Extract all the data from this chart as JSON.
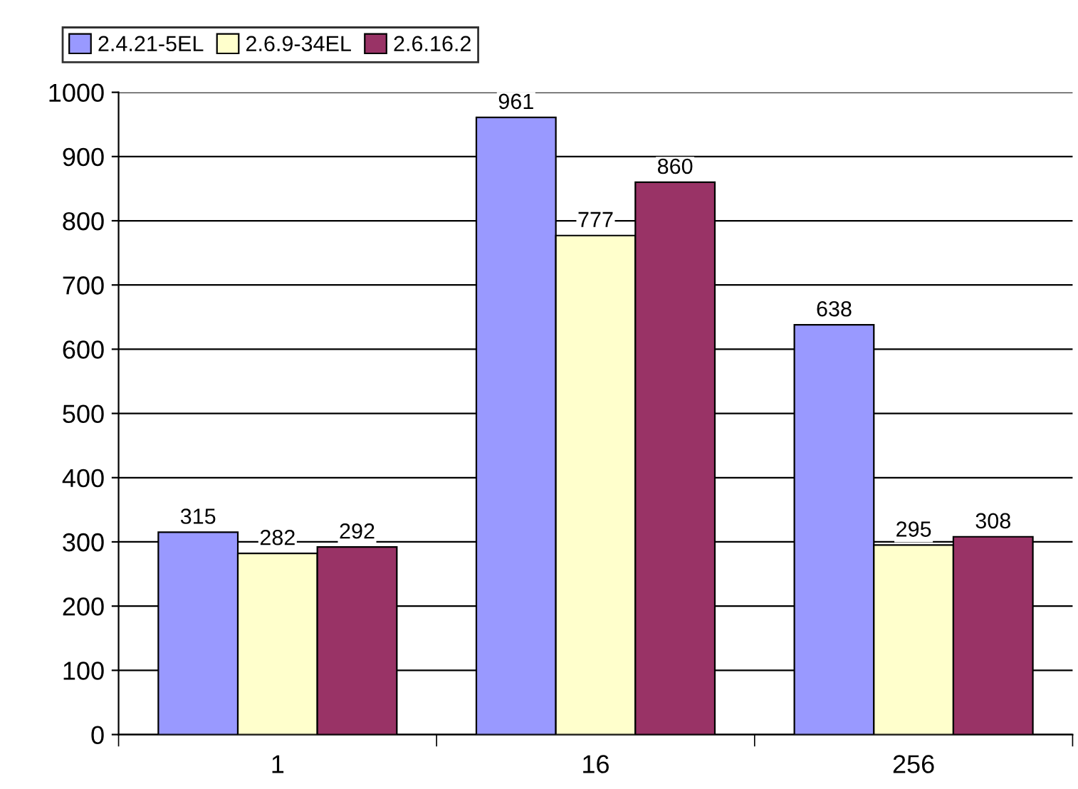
{
  "chart_data": {
    "type": "bar",
    "categories": [
      "1",
      "16",
      "256"
    ],
    "series": [
      {
        "name": "2.4.21-5EL",
        "color": "#9999ff",
        "values": [
          315,
          961,
          638
        ]
      },
      {
        "name": "2.6.9-34EL",
        "color": "#ffffcc",
        "values": [
          282,
          777,
          295
        ]
      },
      {
        "name": "2.6.16.2",
        "color": "#993366",
        "values": [
          292,
          860,
          308
        ]
      }
    ],
    "ylim": [
      0,
      1000
    ],
    "yticks": [
      0,
      100,
      200,
      300,
      400,
      500,
      600,
      700,
      800,
      900,
      1000
    ],
    "grid": "y",
    "legend": "top left",
    "data_labels": true
  }
}
